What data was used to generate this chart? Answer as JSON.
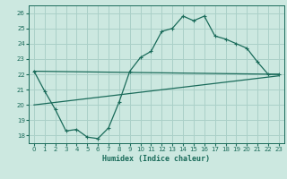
{
  "xlabel": "Humidex (Indice chaleur)",
  "bg_color": "#cce8e0",
  "grid_color": "#aad0c8",
  "line_color": "#1a6b5a",
  "xlim": [
    -0.5,
    23.5
  ],
  "ylim": [
    17.5,
    26.5
  ],
  "xticks": [
    0,
    1,
    2,
    3,
    4,
    5,
    6,
    7,
    8,
    9,
    10,
    11,
    12,
    13,
    14,
    15,
    16,
    17,
    18,
    19,
    20,
    21,
    22,
    23
  ],
  "yticks": [
    18,
    19,
    20,
    21,
    22,
    23,
    24,
    25,
    26
  ],
  "line1_x": [
    0,
    1,
    2,
    3,
    4,
    5,
    6,
    7,
    8,
    9,
    10,
    11,
    12,
    13,
    14,
    15,
    16,
    17,
    18,
    19,
    20,
    21,
    22,
    23
  ],
  "line1_y": [
    22.2,
    20.9,
    19.7,
    18.3,
    18.4,
    17.9,
    17.8,
    18.5,
    20.2,
    22.2,
    23.1,
    23.5,
    24.8,
    25.0,
    25.8,
    25.5,
    25.8,
    24.5,
    24.3,
    24.0,
    23.7,
    22.8,
    22.0,
    22.0
  ],
  "line2_x": [
    0,
    23
  ],
  "line2_y": [
    22.2,
    22.0
  ],
  "line3_x": [
    0,
    23
  ],
  "line3_y": [
    20.0,
    21.9
  ]
}
